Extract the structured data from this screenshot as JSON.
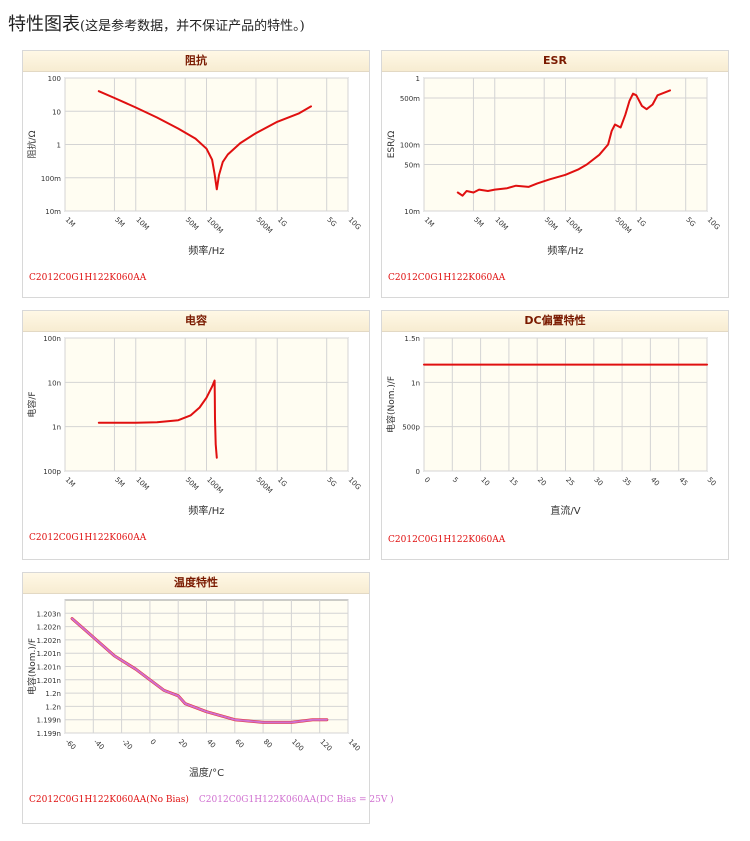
{
  "page": {
    "title_main": "特性图表",
    "title_note": "(这是参考数据，并不保证产品的特性。)"
  },
  "colors": {
    "red": "#e01010",
    "pink": "#d070d0",
    "plot_bg": "#fffdf2",
    "grid": "#d4d4d4"
  },
  "chart_data": [
    {
      "type": "line",
      "title": "阻抗",
      "xlabel": "频率/Hz",
      "ylabel": "阻抗/Ω",
      "xscale": "log",
      "yscale": "log",
      "xlim": [
        1000000,
        10000000000
      ],
      "ylim": [
        0.01,
        100
      ],
      "x_ticks": [
        {
          "v": 1000000,
          "label": "1M"
        },
        {
          "v": 5000000,
          "label": "5M"
        },
        {
          "v": 10000000,
          "label": "10M"
        },
        {
          "v": 50000000,
          "label": "50M"
        },
        {
          "v": 100000000,
          "label": "100M"
        },
        {
          "v": 500000000,
          "label": "500M"
        },
        {
          "v": 1000000000,
          "label": "1G"
        },
        {
          "v": 5000000000,
          "label": "5G"
        },
        {
          "v": 10000000000,
          "label": "10G"
        }
      ],
      "y_ticks": [
        {
          "v": 0.01,
          "label": "10m"
        },
        {
          "v": 0.1,
          "label": "100m"
        },
        {
          "v": 1,
          "label": "1"
        },
        {
          "v": 10,
          "label": "10"
        },
        {
          "v": 100,
          "label": "100"
        }
      ],
      "grid": true,
      "series": [
        {
          "name": "C2012C0G1H122K060AA",
          "color": "#e01010",
          "points": [
            [
              3000000,
              40
            ],
            [
              5000000,
              25
            ],
            [
              10000000,
              13
            ],
            [
              20000000,
              6.5
            ],
            [
              40000000,
              3
            ],
            [
              70000000,
              1.5
            ],
            [
              100000000,
              0.75
            ],
            [
              120000000,
              0.35
            ],
            [
              130000000,
              0.13
            ],
            [
              140000000,
              0.045
            ],
            [
              150000000,
              0.12
            ],
            [
              170000000,
              0.3
            ],
            [
              200000000,
              0.5
            ],
            [
              300000000,
              1.1
            ],
            [
              500000000,
              2.2
            ],
            [
              1000000000,
              4.8
            ],
            [
              2000000000,
              8.5
            ],
            [
              3000000000,
              14
            ]
          ]
        }
      ],
      "legend": "bottom-left"
    },
    {
      "type": "line",
      "title": "ESR",
      "xlabel": "频率/Hz",
      "ylabel": "ESR/Ω",
      "xscale": "log",
      "yscale": "log",
      "xlim": [
        1000000,
        10000000000
      ],
      "ylim": [
        0.01,
        1
      ],
      "x_ticks": [
        {
          "v": 1000000,
          "label": "1M"
        },
        {
          "v": 5000000,
          "label": "5M"
        },
        {
          "v": 10000000,
          "label": "10M"
        },
        {
          "v": 50000000,
          "label": "50M"
        },
        {
          "v": 100000000,
          "label": "100M"
        },
        {
          "v": 500000000,
          "label": "500M"
        },
        {
          "v": 1000000000,
          "label": "1G"
        },
        {
          "v": 5000000000,
          "label": "5G"
        },
        {
          "v": 10000000000,
          "label": "10G"
        }
      ],
      "y_ticks": [
        {
          "v": 0.01,
          "label": "10m"
        },
        {
          "v": 0.05,
          "label": "50m"
        },
        {
          "v": 0.1,
          "label": "100m"
        },
        {
          "v": 0.5,
          "label": "500m"
        },
        {
          "v": 1,
          "label": "1"
        }
      ],
      "grid": true,
      "series": [
        {
          "name": "C2012C0G1H122K060AA",
          "color": "#e01010",
          "points": [
            [
              3000000,
              0.019
            ],
            [
              3500000,
              0.017
            ],
            [
              4000000,
              0.02
            ],
            [
              5000000,
              0.019
            ],
            [
              6000000,
              0.021
            ],
            [
              8000000,
              0.02
            ],
            [
              10000000,
              0.021
            ],
            [
              15000000,
              0.022
            ],
            [
              20000000,
              0.024
            ],
            [
              30000000,
              0.023
            ],
            [
              40000000,
              0.026
            ],
            [
              60000000,
              0.03
            ],
            [
              100000000,
              0.035
            ],
            [
              150000000,
              0.042
            ],
            [
              200000000,
              0.05
            ],
            [
              300000000,
              0.07
            ],
            [
              400000000,
              0.1
            ],
            [
              450000000,
              0.16
            ],
            [
              500000000,
              0.2
            ],
            [
              600000000,
              0.18
            ],
            [
              700000000,
              0.28
            ],
            [
              800000000,
              0.45
            ],
            [
              900000000,
              0.58
            ],
            [
              1000000000,
              0.55
            ],
            [
              1200000000,
              0.38
            ],
            [
              1400000000,
              0.34
            ],
            [
              1700000000,
              0.4
            ],
            [
              2000000000,
              0.55
            ],
            [
              3000000000,
              0.65
            ]
          ]
        }
      ],
      "legend": "bottom-left"
    },
    {
      "type": "line",
      "title": "电容",
      "xlabel": "频率/Hz",
      "ylabel": "电容/F",
      "xscale": "log",
      "yscale": "log",
      "xlim": [
        1000000,
        10000000000
      ],
      "ylim": [
        1e-10,
        1e-07
      ],
      "x_ticks": [
        {
          "v": 1000000,
          "label": "1M"
        },
        {
          "v": 5000000,
          "label": "5M"
        },
        {
          "v": 10000000,
          "label": "10M"
        },
        {
          "v": 50000000,
          "label": "50M"
        },
        {
          "v": 100000000,
          "label": "100M"
        },
        {
          "v": 500000000,
          "label": "500M"
        },
        {
          "v": 1000000000,
          "label": "1G"
        },
        {
          "v": 5000000000,
          "label": "5G"
        },
        {
          "v": 10000000000,
          "label": "10G"
        }
      ],
      "y_ticks": [
        {
          "v": 1e-10,
          "label": "100p"
        },
        {
          "v": 1e-09,
          "label": "1n"
        },
        {
          "v": 1e-08,
          "label": "10n"
        },
        {
          "v": 1e-07,
          "label": "100n"
        }
      ],
      "grid": true,
      "series": [
        {
          "name": "C2012C0G1H122K060AA",
          "color": "#e01010",
          "points": [
            [
              3000000,
              1.22e-09
            ],
            [
              10000000,
              1.22e-09
            ],
            [
              20000000,
              1.26e-09
            ],
            [
              40000000,
              1.4e-09
            ],
            [
              60000000,
              1.8e-09
            ],
            [
              80000000,
              2.7e-09
            ],
            [
              100000000,
              4.5e-09
            ],
            [
              120000000,
              8e-09
            ],
            [
              130000000,
              1.1e-08
            ],
            [
              131000000,
              5e-09
            ],
            [
              132000000,
              1.5e-09
            ],
            [
              135000000,
              4e-10
            ],
            [
              140000000,
              2e-10
            ]
          ]
        }
      ],
      "legend": "bottom-left"
    },
    {
      "type": "line",
      "title": "DC偏置特性",
      "xlabel": "直流/V",
      "ylabel": "电容(Nom.)/F",
      "xscale": "linear",
      "yscale": "linear",
      "xlim": [
        0,
        50
      ],
      "ylim": [
        0,
        1.5e-09
      ],
      "x_ticks": [
        {
          "v": 0,
          "label": "0"
        },
        {
          "v": 5,
          "label": "5"
        },
        {
          "v": 10,
          "label": "10"
        },
        {
          "v": 15,
          "label": "15"
        },
        {
          "v": 20,
          "label": "20"
        },
        {
          "v": 25,
          "label": "25"
        },
        {
          "v": 30,
          "label": "30"
        },
        {
          "v": 35,
          "label": "35"
        },
        {
          "v": 40,
          "label": "40"
        },
        {
          "v": 45,
          "label": "45"
        },
        {
          "v": 50,
          "label": "50"
        }
      ],
      "y_ticks": [
        {
          "v": 0,
          "label": "0"
        },
        {
          "v": 5e-10,
          "label": "500p"
        },
        {
          "v": 1e-09,
          "label": "1n"
        },
        {
          "v": 1.5e-09,
          "label": "1.5n"
        }
      ],
      "grid": true,
      "series": [
        {
          "name": "C2012C0G1H122K060AA",
          "color": "#e01010",
          "points": [
            [
              0,
              1.2e-09
            ],
            [
              50,
              1.2e-09
            ]
          ]
        }
      ],
      "legend": "bottom-left"
    },
    {
      "type": "line",
      "title": "温度特性",
      "xlabel": "温度/°C",
      "ylabel": "电容(Nom.)/F",
      "xscale": "linear",
      "yscale": "linear",
      "xlim": [
        -60,
        140
      ],
      "ylim": [
        1.1985e-09,
        1.2035e-09
      ],
      "x_ticks": [
        {
          "v": -60,
          "label": "-60"
        },
        {
          "v": -40,
          "label": "-40"
        },
        {
          "v": -20,
          "label": "-20"
        },
        {
          "v": 0,
          "label": "0"
        },
        {
          "v": 20,
          "label": "20"
        },
        {
          "v": 40,
          "label": "40"
        },
        {
          "v": 60,
          "label": "60"
        },
        {
          "v": 80,
          "label": "80"
        },
        {
          "v": 100,
          "label": "100"
        },
        {
          "v": 120,
          "label": "120"
        },
        {
          "v": 140,
          "label": "140"
        }
      ],
      "y_ticks": [
        {
          "v": 1.1985e-09,
          "label": "1.199n"
        },
        {
          "v": 1.199e-09,
          "label": "1.199n"
        },
        {
          "v": 1.1995e-09,
          "label": "1.2n"
        },
        {
          "v": 1.2e-09,
          "label": "1.2n"
        },
        {
          "v": 1.2005e-09,
          "label": "1.201n"
        },
        {
          "v": 1.201e-09,
          "label": "1.201n"
        },
        {
          "v": 1.2015e-09,
          "label": "1.201n"
        },
        {
          "v": 1.202e-09,
          "label": "1.202n"
        },
        {
          "v": 1.2025e-09,
          "label": "1.202n"
        },
        {
          "v": 1.203e-09,
          "label": "1.203n"
        }
      ],
      "grid": true,
      "series": [
        {
          "name": "C2012C0G1H122K060AA(No Bias)",
          "color": "#e01010",
          "points": [
            [
              -55,
              1.2028e-09
            ],
            [
              -40,
              1.2021e-09
            ],
            [
              -25,
              1.2014e-09
            ],
            [
              -10,
              1.2009e-09
            ],
            [
              0,
              1.2005e-09
            ],
            [
              10,
              1.2001e-09
            ],
            [
              20,
              1.1999e-09
            ],
            [
              25,
              1.1996e-09
            ],
            [
              40,
              1.1993e-09
            ],
            [
              60,
              1.199e-09
            ],
            [
              80,
              1.1989e-09
            ],
            [
              100,
              1.1989e-09
            ],
            [
              115,
              1.199e-09
            ],
            [
              125,
              1.199e-09
            ]
          ]
        },
        {
          "name": "C2012C0G1H122K060AA(DC Bias = 25V )",
          "color": "#d070d0",
          "points": [
            [
              -55,
              1.2028e-09
            ],
            [
              -40,
              1.2021e-09
            ],
            [
              -25,
              1.2014e-09
            ],
            [
              -10,
              1.2009e-09
            ],
            [
              0,
              1.2005e-09
            ],
            [
              10,
              1.2001e-09
            ],
            [
              20,
              1.1999e-09
            ],
            [
              25,
              1.1996e-09
            ],
            [
              40,
              1.1993e-09
            ],
            [
              60,
              1.199e-09
            ],
            [
              80,
              1.1989e-09
            ],
            [
              100,
              1.1989e-09
            ],
            [
              115,
              1.199e-09
            ],
            [
              125,
              1.199e-09
            ]
          ]
        }
      ],
      "legend": "bottom-left"
    }
  ]
}
